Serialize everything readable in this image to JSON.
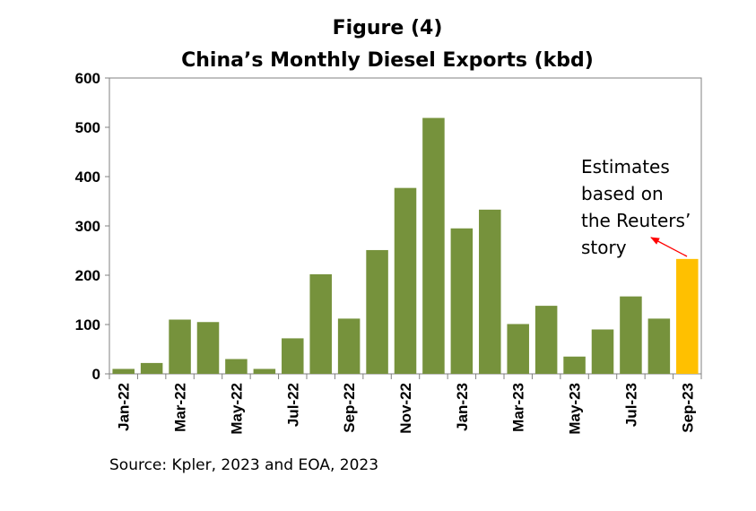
{
  "chart_data": {
    "type": "bar",
    "title": "Figure (4)",
    "subtitle": "China’s Monthly Diesel Exports (kbd)",
    "categories": [
      "Jan-22",
      "Feb-22",
      "Mar-22",
      "Apr-22",
      "May-22",
      "Jun-22",
      "Jul-22",
      "Aug-22",
      "Sep-22",
      "Oct-22",
      "Nov-22",
      "Dec-22",
      "Jan-23",
      "Feb-23",
      "Mar-23",
      "Apr-23",
      "May-23",
      "Jun-23",
      "Jul-23",
      "Aug-23",
      "Sep-23"
    ],
    "tick_labels": [
      "Jan-22",
      "Mar-22",
      "May-22",
      "Jul-22",
      "Sep-22",
      "Nov-22",
      "Jan-23",
      "Mar-23",
      "May-23",
      "Jul-23",
      "Sep-23"
    ],
    "values": [
      10,
      22,
      110,
      105,
      30,
      10,
      72,
      202,
      112,
      251,
      377,
      519,
      295,
      333,
      101,
      138,
      35,
      90,
      157,
      112,
      233
    ],
    "highlight_index": 20,
    "ylim": [
      0,
      600
    ],
    "yticks": [
      0,
      100,
      200,
      300,
      400,
      500,
      600
    ],
    "grid": false,
    "colors": {
      "bar": "#76923C",
      "highlight": "#FFC000",
      "arrow": "#FF0000"
    },
    "annotation": {
      "lines": [
        "Estimates",
        "based on",
        "the Reuters’",
        "story"
      ]
    },
    "source": "Source: Kpler, 2023 and EOA, 2023"
  }
}
